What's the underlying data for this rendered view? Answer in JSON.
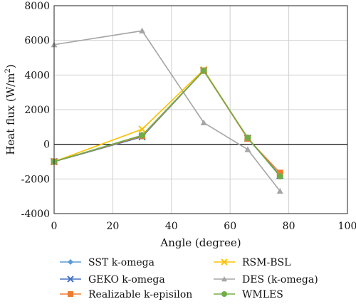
{
  "chart_data": {
    "type": "line",
    "xlabel": "Angle (degree)",
    "ylabel": "Heat flux (W/m",
    "ylabel_superscript": "2",
    "ylabel_suffix": ")",
    "xlim": [
      0,
      100
    ],
    "ylim": [
      -4000,
      8000
    ],
    "xticks": [
      0,
      20,
      40,
      60,
      80,
      100
    ],
    "yticks": [
      -4000,
      -2000,
      0,
      2000,
      4000,
      6000,
      8000
    ],
    "legend_position": "bottom",
    "grid": true,
    "x": [
      0,
      30,
      51,
      66,
      77
    ],
    "series": [
      {
        "name": "SST k-omega",
        "values": [
          -1000,
          450,
          4250,
          350,
          -1800
        ],
        "color": "#5B9BD5",
        "marker": "diamond"
      },
      {
        "name": "RSM-BSL",
        "values": [
          -1000,
          870,
          4300,
          350,
          -1800
        ],
        "color": "#FFC000",
        "marker": "x"
      },
      {
        "name": "GEKO k-omega",
        "values": [
          -1000,
          430,
          4250,
          350,
          -1800
        ],
        "color": "#4472C4",
        "marker": "x"
      },
      {
        "name": "DES (k-omega)",
        "values": [
          5750,
          6550,
          1250,
          -300,
          -2700
        ],
        "color": "#A5A5A5",
        "marker": "triangle"
      },
      {
        "name": "Realizable k-episilon",
        "values": [
          -1000,
          480,
          4250,
          330,
          -1650
        ],
        "color": "#ED7D31",
        "marker": "square"
      },
      {
        "name": "WMLES",
        "values": [
          -1000,
          520,
          4250,
          380,
          -1850
        ],
        "color": "#70AD47",
        "marker": "circle"
      }
    ]
  }
}
